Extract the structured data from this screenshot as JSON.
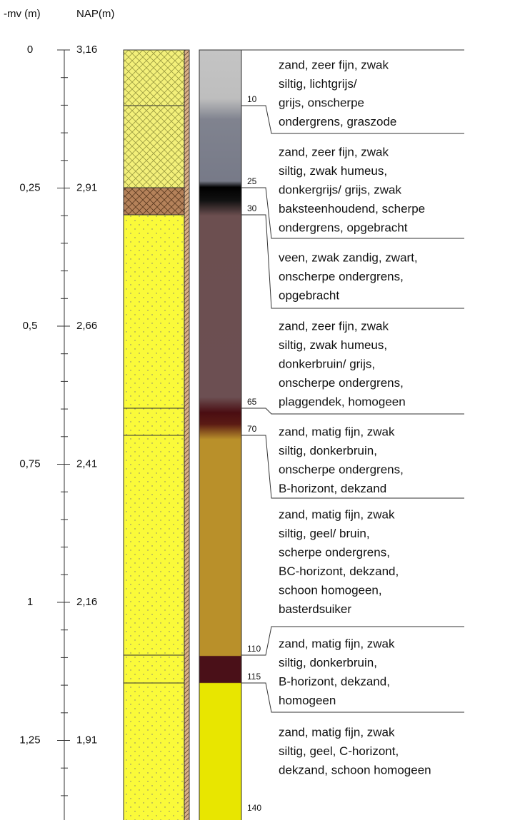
{
  "header": {
    "depth_label": "-mv (m)",
    "nap_label": "NAP(m)"
  },
  "depth_axis": [
    {
      "depth": "0",
      "nap": "3,16"
    },
    {
      "depth": "0,25",
      "nap": "2,91"
    },
    {
      "depth": "0,5",
      "nap": "2,66"
    },
    {
      "depth": "0,75",
      "nap": "2,41"
    },
    {
      "depth": "1",
      "nap": "2,16"
    },
    {
      "depth": "1,25",
      "nap": "1,91"
    }
  ],
  "markers": [
    "10",
    "25",
    "30",
    "65",
    "70",
    "110",
    "115",
    "140"
  ],
  "descriptions": [
    [
      "zand, zeer fijn, zwak",
      "siltig, lichtgrijs/",
      "grijs, onscherpe",
      "ondergrens, graszode"
    ],
    [
      "zand, zeer fijn, zwak",
      "siltig, zwak humeus,",
      "donkergrijs/ grijs, zwak",
      "baksteenhoudend, scherpe",
      "ondergrens, opgebracht"
    ],
    [
      "veen, zwak zandig, zwart,",
      "onscherpe ondergrens,",
      "opgebracht"
    ],
    [
      "zand, zeer fijn, zwak",
      "siltig, zwak humeus,",
      "donkerbruin/ grijs,",
      "onscherpe ondergrens,",
      "plaggendek, homogeen"
    ],
    [
      "zand, matig fijn, zwak",
      "siltig, donkerbruin,",
      "onscherpe ondergrens,",
      "B-horizont, dekzand"
    ],
    [
      "zand, matig fijn, zwak",
      "siltig, geel/ bruin,",
      "scherpe ondergrens,",
      "BC-horizont, dekzand,",
      "schoon homogeen,",
      "basterdsuiker"
    ],
    [
      "zand, matig fijn, zwak",
      "siltig, donkerbruin,",
      "B-horizont, dekzand,",
      "homogeen"
    ],
    [
      "zand, matig fijn, zwak",
      "siltig, geel, C-horizont,",
      "dekzand, schoon homogeen"
    ]
  ]
}
